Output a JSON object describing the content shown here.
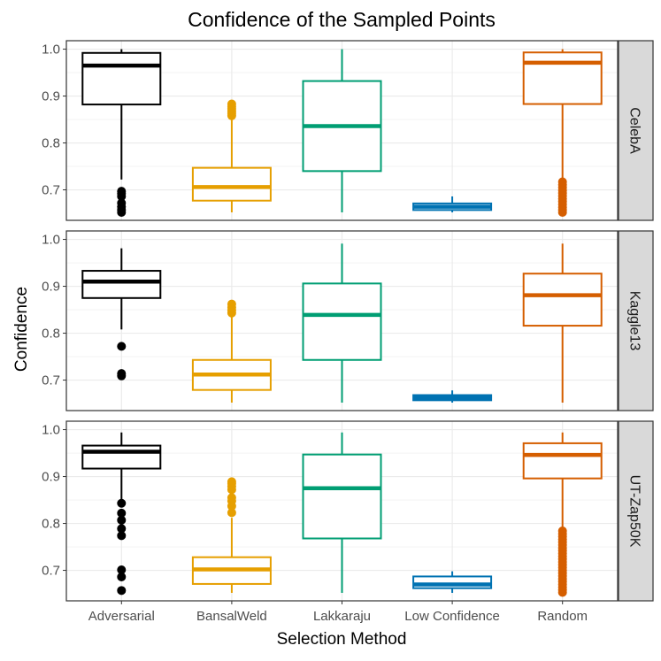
{
  "chart_data": {
    "type": "boxplot",
    "title": "Confidence of the Sampled Points",
    "xlabel": "Selection Method",
    "ylabel": "Confidence",
    "categories": [
      "Adversarial",
      "BansalWeld",
      "Lakkaraju",
      "Low Confidence",
      "Random"
    ],
    "colors": [
      "#000000",
      "#E69F00",
      "#009E73",
      "#0072B2",
      "#D55E00"
    ],
    "ylim": [
      0.635,
      1.018
    ],
    "y_ticks": [
      0.7,
      0.8,
      0.9,
      1.0
    ],
    "y_tick_labels": [
      "0.7",
      "0.8",
      "0.9",
      "1.0"
    ],
    "facets": [
      {
        "name": "CelebA",
        "boxes": [
          {
            "q1": 0.882,
            "median": 0.965,
            "q3": 0.992,
            "whisker_low": 0.722,
            "whisker_high": 1.0,
            "outliers": [
              0.697,
              0.692,
              0.686,
              0.672,
              0.664,
              0.657,
              0.652
            ]
          },
          {
            "q1": 0.677,
            "median": 0.706,
            "q3": 0.747,
            "whisker_low": 0.652,
            "whisker_high": 0.852,
            "outliers": [
              0.858,
              0.863,
              0.868,
              0.873,
              0.878,
              0.883
            ]
          },
          {
            "q1": 0.74,
            "median": 0.836,
            "q3": 0.932,
            "whisker_low": 0.652,
            "whisker_high": 1.0,
            "outliers": []
          },
          {
            "q1": 0.657,
            "median": 0.664,
            "q3": 0.671,
            "whisker_low": 0.652,
            "whisker_high": 0.686,
            "outliers": []
          },
          {
            "q1": 0.883,
            "median": 0.971,
            "q3": 0.993,
            "whisker_low": 0.723,
            "whisker_high": 1.0,
            "outliers": [
              0.717,
              0.711,
              0.705,
              0.699,
              0.693,
              0.687,
              0.681,
              0.675,
              0.669,
              0.663,
              0.657,
              0.652
            ]
          }
        ]
      },
      {
        "name": "Kaggle13",
        "boxes": [
          {
            "q1": 0.875,
            "median": 0.91,
            "q3": 0.933,
            "whisker_low": 0.808,
            "whisker_high": 0.981,
            "outliers": [
              0.772,
              0.714,
              0.709
            ]
          },
          {
            "q1": 0.679,
            "median": 0.712,
            "q3": 0.743,
            "whisker_low": 0.652,
            "whisker_high": 0.838,
            "outliers": [
              0.843,
              0.849,
              0.855,
              0.862
            ]
          },
          {
            "q1": 0.743,
            "median": 0.839,
            "q3": 0.906,
            "whisker_low": 0.652,
            "whisker_high": 0.991,
            "outliers": []
          },
          {
            "q1": 0.657,
            "median": 0.662,
            "q3": 0.668,
            "whisker_low": 0.652,
            "whisker_high": 0.678,
            "outliers": []
          },
          {
            "q1": 0.816,
            "median": 0.881,
            "q3": 0.927,
            "whisker_low": 0.652,
            "whisker_high": 0.991,
            "outliers": []
          }
        ]
      },
      {
        "name": "UT-Zap50K",
        "boxes": [
          {
            "q1": 0.917,
            "median": 0.953,
            "q3": 0.966,
            "whisker_low": 0.849,
            "whisker_high": 0.994,
            "outliers": [
              0.843,
              0.822,
              0.807,
              0.789,
              0.774,
              0.701,
              0.686,
              0.657
            ]
          },
          {
            "q1": 0.671,
            "median": 0.702,
            "q3": 0.728,
            "whisker_low": 0.652,
            "whisker_high": 0.812,
            "outliers": [
              0.823,
              0.837,
              0.848,
              0.855,
              0.872,
              0.879,
              0.885,
              0.889
            ]
          },
          {
            "q1": 0.768,
            "median": 0.875,
            "q3": 0.947,
            "whisker_low": 0.652,
            "whisker_high": 0.994,
            "outliers": []
          },
          {
            "q1": 0.662,
            "median": 0.67,
            "q3": 0.687,
            "whisker_low": 0.652,
            "whisker_high": 0.698,
            "outliers": []
          },
          {
            "q1": 0.896,
            "median": 0.946,
            "q3": 0.971,
            "whisker_low": 0.79,
            "whisker_high": 0.994,
            "outliers": [
              0.784,
              0.778,
              0.772,
              0.766,
              0.76,
              0.754,
              0.748,
              0.742,
              0.736,
              0.73,
              0.724,
              0.718,
              0.712,
              0.706,
              0.7,
              0.694,
              0.688,
              0.682,
              0.676,
              0.67,
              0.664,
              0.658,
              0.653
            ]
          }
        ]
      }
    ]
  }
}
